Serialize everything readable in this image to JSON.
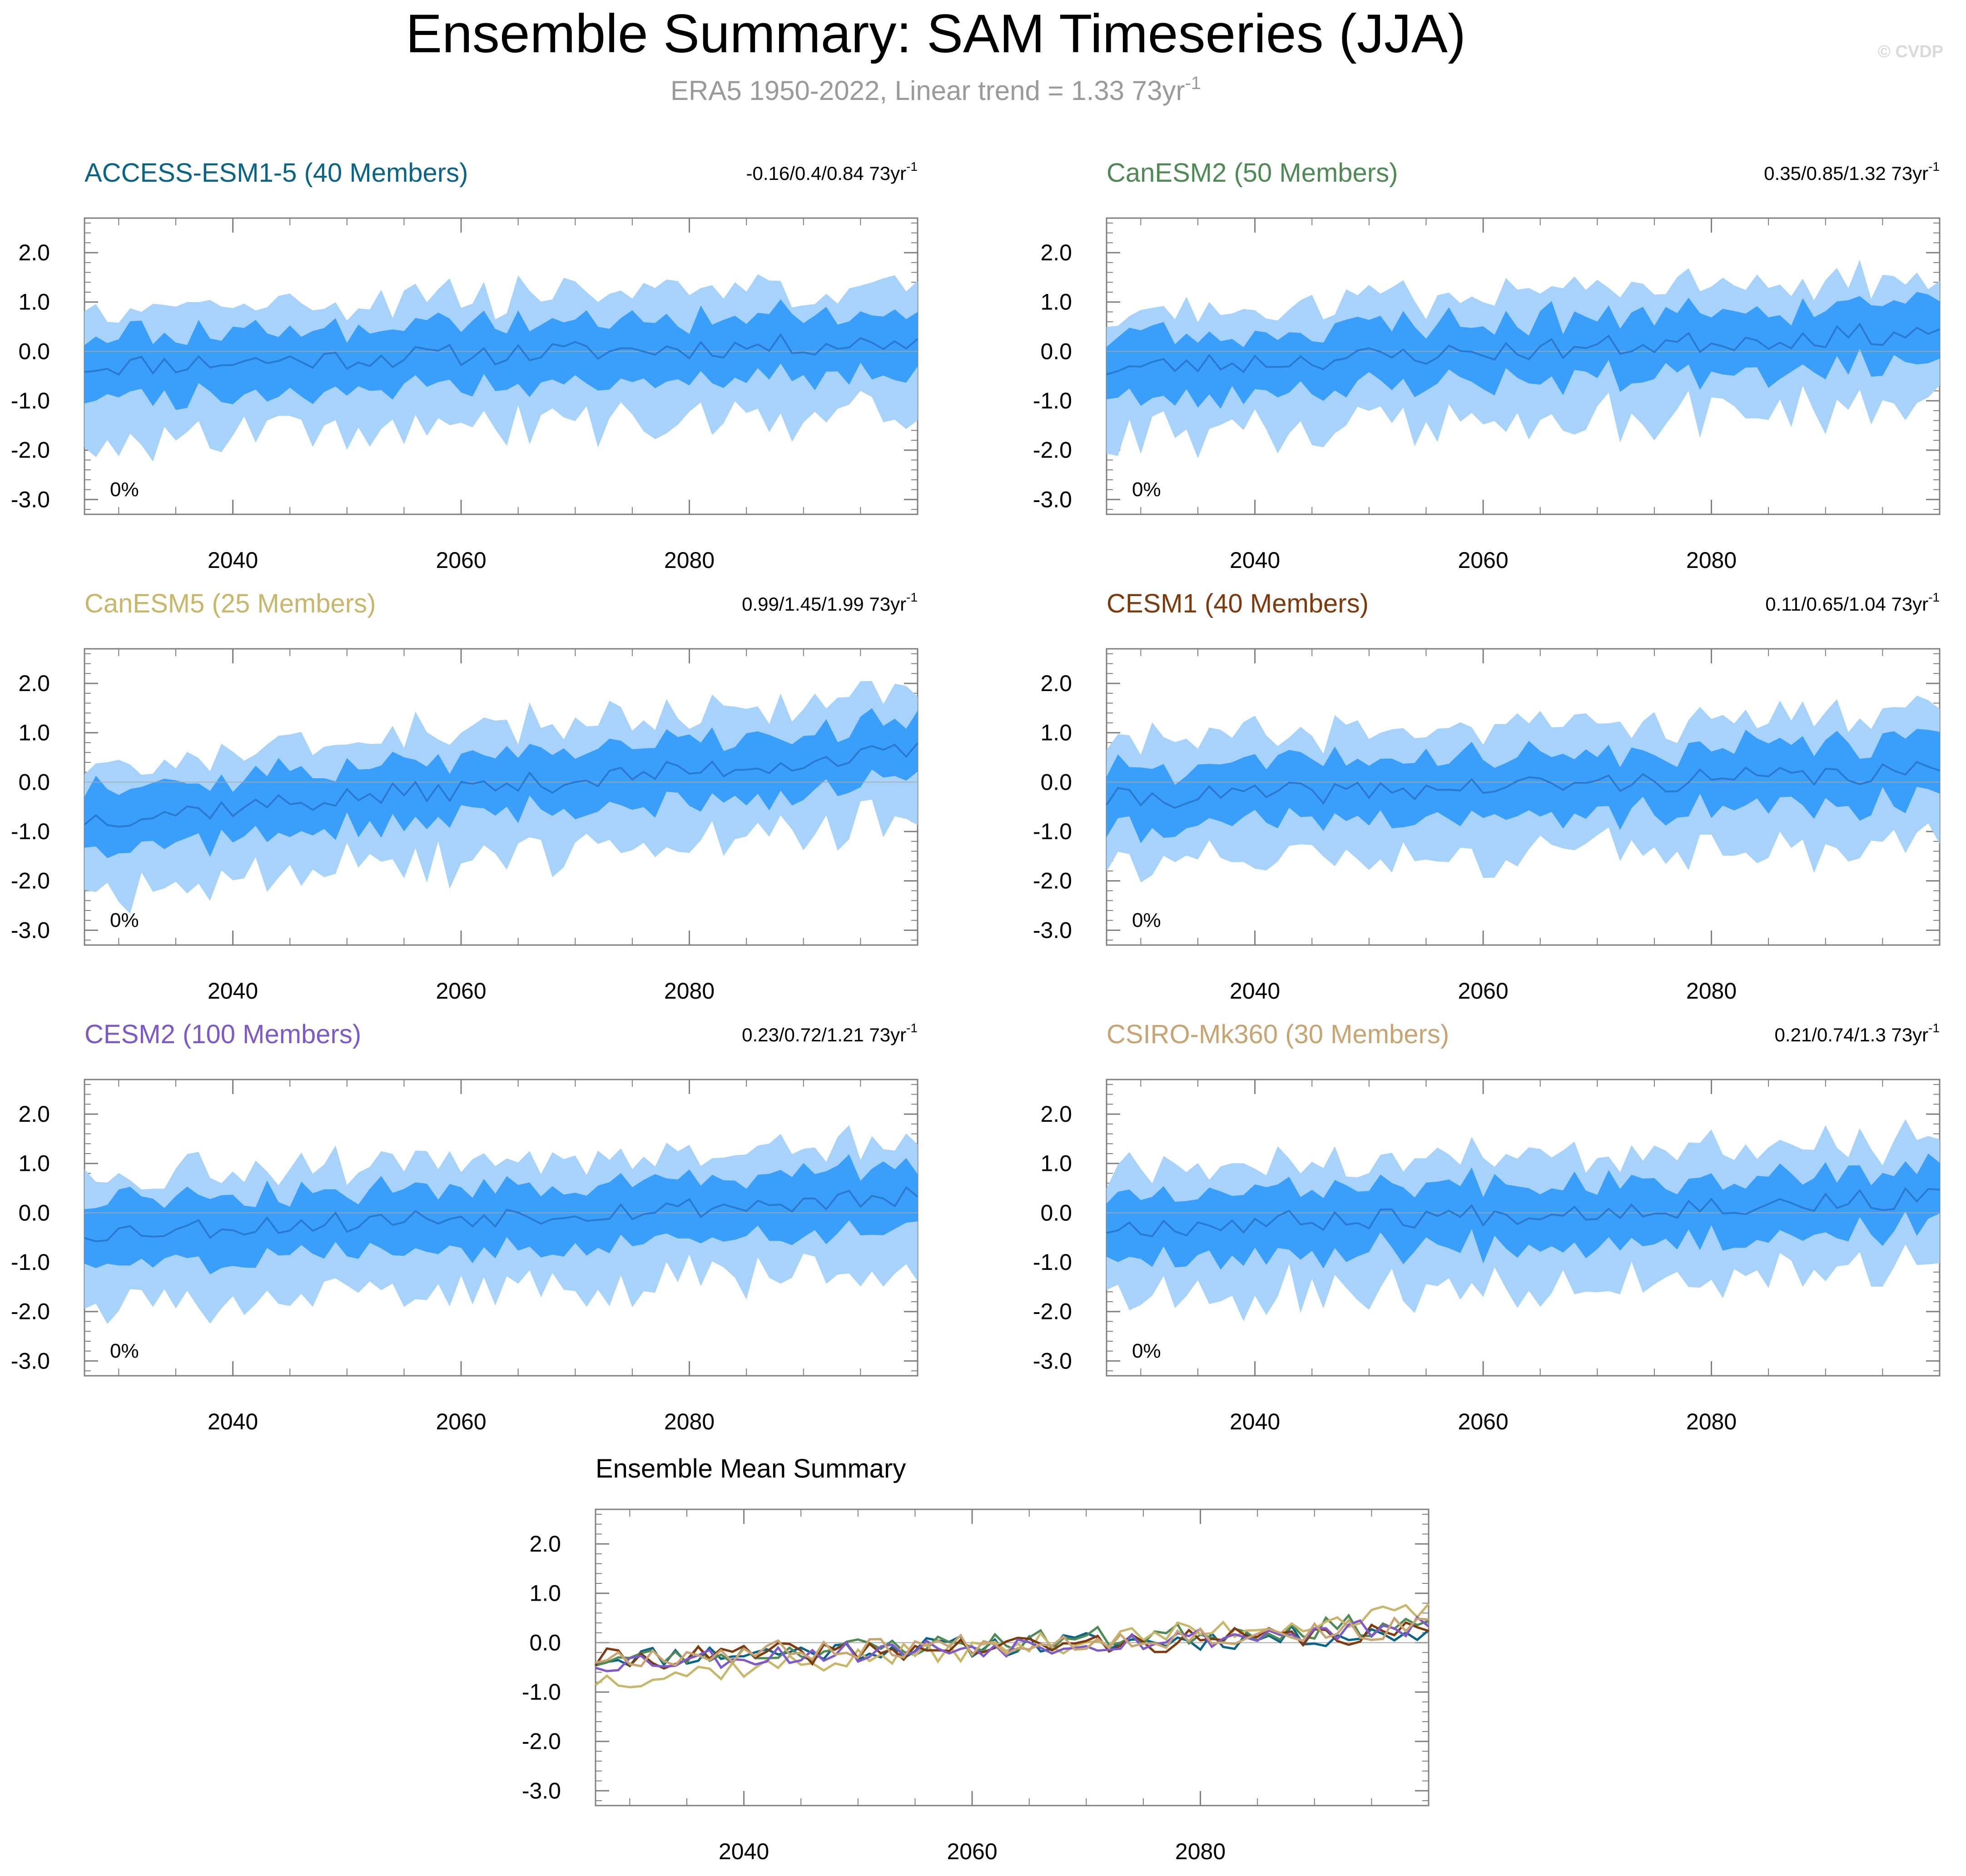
{
  "title": "Ensemble Summary: SAM Timeseries (JJA)",
  "subtitle": {
    "main": "ERA5 1950-2022, Linear trend = 1.33 73yr",
    "superscript": "-1"
  },
  "watermark": "© CVDP",
  "colors": {
    "outer_band": "#a6d2fb",
    "inner_band": "#3a9ffb",
    "mean_line": "#2a7ad0",
    "zero_line": "#a9a9a9",
    "axis": "#7f7f7f"
  },
  "chart_data": [
    {
      "type": "area",
      "title": "ACCESS-ESM1-5 (40 Members)",
      "title_color": "#0a6487",
      "trend_text": "-0.16/0.4/0.84 73yr",
      "trend_sup": "-1",
      "pct_label": "0%",
      "seed": 11,
      "trend_start": -0.3,
      "trend_end": 0.2,
      "x_range": [
        2027,
        2100
      ],
      "ylim": [
        -3.3,
        2.7
      ],
      "y_ticks": [
        2.0,
        1.0,
        0.0,
        -1.0,
        -2.0,
        -3.0
      ],
      "y_tick_labels": [
        "2.0",
        "1.0",
        "0.0",
        "-1.0",
        "-2.0",
        "-3.0"
      ],
      "x_ticks": [
        2040,
        2060,
        2080
      ],
      "x_tick_labels": [
        "2040",
        "2060",
        "2080"
      ]
    },
    {
      "type": "area",
      "title": "CanESM2 (50 Members)",
      "title_color": "#4f8a55",
      "trend_text": "0.35/0.85/1.32 73yr",
      "trend_sup": "-1",
      "pct_label": "0%",
      "seed": 23,
      "trend_start": -0.35,
      "trend_end": 0.4,
      "x_range": [
        2027,
        2100
      ],
      "ylim": [
        -3.3,
        2.7
      ],
      "y_ticks": [
        2.0,
        1.0,
        0.0,
        -1.0,
        -2.0,
        -3.0
      ],
      "y_tick_labels": [
        "2.0",
        "1.0",
        "0.0",
        "-1.0",
        "-2.0",
        "-3.0"
      ],
      "x_ticks": [
        2040,
        2060,
        2080
      ],
      "x_tick_labels": [
        "2040",
        "2060",
        "2080"
      ]
    },
    {
      "type": "area",
      "title": "CanESM5 (25 Members)",
      "title_color": "#c8b66a",
      "trend_text": "0.99/1.45/1.99 73yr",
      "trend_sup": "-1",
      "pct_label": "0%",
      "seed": 37,
      "trend_start": -0.75,
      "trend_end": 0.6,
      "x_range": [
        2027,
        2100
      ],
      "ylim": [
        -3.3,
        2.7
      ],
      "y_ticks": [
        2.0,
        1.0,
        0.0,
        -1.0,
        -2.0,
        -3.0
      ],
      "y_tick_labels": [
        "2.0",
        "1.0",
        "0.0",
        "-1.0",
        "-2.0",
        "-3.0"
      ],
      "x_ticks": [
        2040,
        2060,
        2080
      ],
      "x_tick_labels": [
        "2040",
        "2060",
        "2080"
      ]
    },
    {
      "type": "area",
      "title": "CESM1 (40 Members)",
      "title_color": "#7e3a0c",
      "trend_text": "0.11/0.65/1.04 73yr",
      "trend_sup": "-1",
      "pct_label": "0%",
      "seed": 41,
      "trend_start": -0.35,
      "trend_end": 0.2,
      "x_range": [
        2027,
        2100
      ],
      "ylim": [
        -3.3,
        2.7
      ],
      "y_ticks": [
        2.0,
        1.0,
        0.0,
        -1.0,
        -2.0,
        -3.0
      ],
      "y_tick_labels": [
        "2.0",
        "1.0",
        "0.0",
        "-1.0",
        "-2.0",
        "-3.0"
      ],
      "x_ticks": [
        2040,
        2060,
        2080
      ],
      "x_tick_labels": [
        "2040",
        "2060",
        "2080"
      ]
    },
    {
      "type": "area",
      "title": "CESM2 (100 Members)",
      "title_color": "#7d59c9",
      "trend_text": "0.23/0.72/1.21 73yr",
      "trend_sup": "-1",
      "pct_label": "0%",
      "seed": 53,
      "trend_start": -0.4,
      "trend_end": 0.3,
      "x_range": [
        2027,
        2100
      ],
      "ylim": [
        -3.3,
        2.7
      ],
      "y_ticks": [
        2.0,
        1.0,
        0.0,
        -1.0,
        -2.0,
        -3.0
      ],
      "y_tick_labels": [
        "2.0",
        "1.0",
        "0.0",
        "-1.0",
        "-2.0",
        "-3.0"
      ],
      "x_ticks": [
        2040,
        2060,
        2080
      ],
      "x_tick_labels": [
        "2040",
        "2060",
        "2080"
      ]
    },
    {
      "type": "area",
      "title": "CSIRO-Mk360 (30 Members)",
      "title_color": "#c9a473",
      "trend_text": "0.21/0.74/1.3 73yr",
      "trend_sup": "-1",
      "pct_label": "0%",
      "seed": 67,
      "trend_start": -0.3,
      "trend_end": 0.3,
      "x_range": [
        2027,
        2100
      ],
      "ylim": [
        -3.3,
        2.7
      ],
      "y_ticks": [
        2.0,
        1.0,
        0.0,
        -1.0,
        -2.0,
        -3.0
      ],
      "y_tick_labels": [
        "2.0",
        "1.0",
        "0.0",
        "-1.0",
        "-2.0",
        "-3.0"
      ],
      "x_ticks": [
        2040,
        2060,
        2080
      ],
      "x_tick_labels": [
        "2040",
        "2060",
        "2080"
      ]
    },
    {
      "type": "line",
      "title": "Ensemble Mean Summary",
      "x_range": [
        2027,
        2100
      ],
      "ylim": [
        -3.3,
        2.7
      ],
      "y_ticks": [
        2.0,
        1.0,
        0.0,
        -1.0,
        -2.0,
        -3.0
      ],
      "y_tick_labels": [
        "2.0",
        "1.0",
        "0.0",
        "-1.0",
        "-2.0",
        "-3.0"
      ],
      "x_ticks": [
        2040,
        2060,
        2080
      ],
      "x_tick_labels": [
        "2040",
        "2060",
        "2080"
      ],
      "series": [
        {
          "name": "ACCESS-ESM1-5",
          "color": "#0a6487",
          "seed": 11
        },
        {
          "name": "CanESM2",
          "color": "#4f8a55",
          "seed": 23
        },
        {
          "name": "CanESM5",
          "color": "#c8b66a",
          "seed": 37
        },
        {
          "name": "CESM1",
          "color": "#7e3a0c",
          "seed": 41
        },
        {
          "name": "CESM2",
          "color": "#7d59c9",
          "seed": 53
        },
        {
          "name": "CSIRO-Mk360",
          "color": "#c9a473",
          "seed": 67
        }
      ]
    }
  ]
}
